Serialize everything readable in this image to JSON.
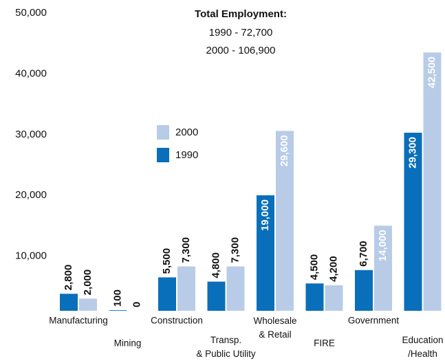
{
  "chart_data": {
    "type": "bar",
    "title": "Total Employment:",
    "subtitle": [
      "1990 - 72,700",
      "2000 - 106,900"
    ],
    "categories": [
      "Manufacturing",
      "Mining",
      "Construction",
      "Transp.\n& Public Utility",
      "Wholesale\n& Retail",
      "FIRE",
      "Government",
      "Education\n/Health"
    ],
    "series": [
      {
        "name": "1990",
        "color": "#0a6fba",
        "values": [
          2800,
          100,
          5500,
          4800,
          19000,
          4500,
          6700,
          29300
        ],
        "value_labels": [
          "2,800",
          "100",
          "5,500",
          "4,800",
          "19,000",
          "4,500",
          "6,700",
          "29,300"
        ]
      },
      {
        "name": "2000",
        "color": "#b8cce8",
        "values": [
          2000,
          0,
          7300,
          7300,
          29600,
          4200,
          14000,
          42500
        ],
        "value_labels": [
          "2,000",
          "0",
          "7,300",
          "7,300",
          "29,600",
          "4,200",
          "14,000",
          "42,500"
        ]
      }
    ],
    "ylim": [
      0,
      50000
    ],
    "yticks": [
      {
        "value": 10000,
        "label": "10,000"
      },
      {
        "value": 20000,
        "label": "20,000"
      },
      {
        "value": 30000,
        "label": "30,000"
      },
      {
        "value": 40000,
        "label": "40,000"
      },
      {
        "value": 50000,
        "label": "50,000"
      }
    ],
    "grid": false
  }
}
